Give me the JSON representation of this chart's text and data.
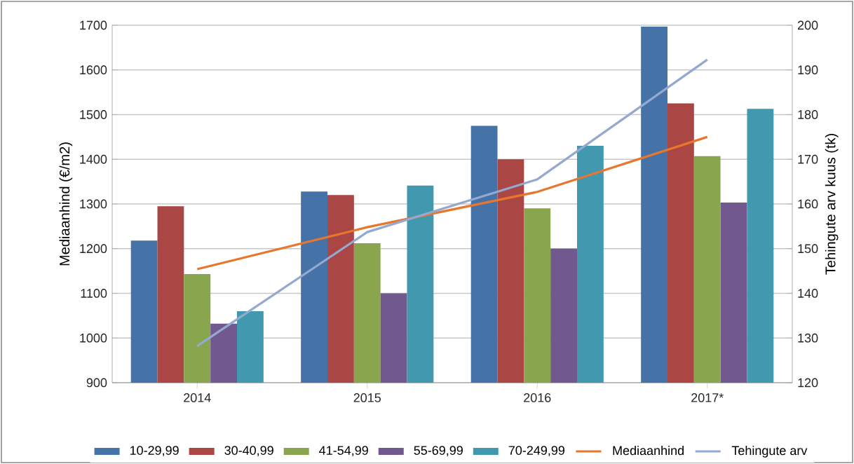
{
  "chart_data": {
    "type": "bar",
    "categories": [
      "2014",
      "2015",
      "2016",
      "2017*"
    ],
    "ylabel": "Mediaanhind (€/m2)",
    "y2label": "Tehingute arv kuus (tk)",
    "ylim": [
      900,
      1700
    ],
    "yticks": [
      900,
      1000,
      1100,
      1200,
      1300,
      1400,
      1500,
      1600,
      1700
    ],
    "y2lim": [
      120,
      200
    ],
    "y2ticks": [
      120,
      130,
      140,
      150,
      160,
      170,
      180,
      190,
      200
    ],
    "grid": "y",
    "legend": "bottom",
    "marker": "none",
    "line_style": "solid",
    "series": [
      {
        "name": "10-29,99",
        "color": "#4572a7",
        "values": [
          1218,
          1328,
          1475,
          1697
        ]
      },
      {
        "name": "30-40,99",
        "color": "#aa4643",
        "values": [
          1295,
          1320,
          1400,
          1525
        ]
      },
      {
        "name": "41-54,99",
        "color": "#89a54e",
        "values": [
          1143,
          1212,
          1290,
          1407
        ]
      },
      {
        "name": "55-69,99",
        "color": "#71588f",
        "values": [
          1032,
          1100,
          1200,
          1303
        ]
      },
      {
        "name": "70-249,99",
        "color": "#4198af",
        "values": [
          1060,
          1341,
          1430,
          1513
        ]
      },
      {
        "name": "Mediaanhind",
        "type": "line",
        "color": "#e8762d",
        "values": [
          1154,
          1248,
          1327,
          1450
        ]
      },
      {
        "name": "Tehingute arv",
        "type": "line",
        "axis": "y2",
        "color": "#93a9cf",
        "values": [
          128.2,
          153.7,
          165.5,
          192.3
        ]
      }
    ]
  }
}
